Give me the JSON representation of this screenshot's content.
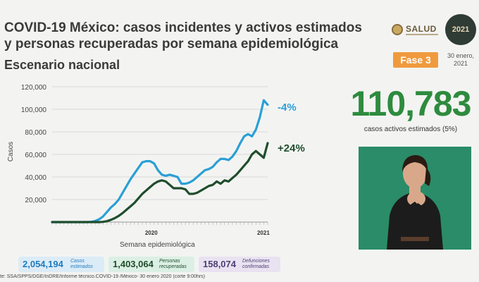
{
  "header": {
    "title": "COVID-19 México: casos incidentes y activos estimados y personas recuperadas por semana epidemiológica",
    "subtitle": "Escenario nacional",
    "logo_text": "SALUD",
    "year_badge": "2021",
    "phase": "Fase 3",
    "date": "30 enero, 2021"
  },
  "highlight": {
    "value": "110,783",
    "label": "casos activos estimados (5%)"
  },
  "chart_data": {
    "type": "line",
    "ylabel": "Casos",
    "xlabel": "Semana epidemiológica",
    "ylim": [
      0,
      120000
    ],
    "yticks": [
      "20,000",
      "40,000",
      "60,000",
      "80,000",
      "100,000",
      "120,000"
    ],
    "x_group_labels": [
      "2020",
      "2021"
    ],
    "x": [
      1,
      2,
      3,
      4,
      5,
      6,
      7,
      8,
      9,
      10,
      11,
      12,
      13,
      14,
      15,
      16,
      17,
      18,
      19,
      20,
      21,
      22,
      23,
      24,
      25,
      26,
      27,
      28,
      29,
      30,
      31,
      32,
      33,
      34,
      35,
      36,
      37,
      38,
      39,
      40,
      41,
      42,
      43,
      44,
      45,
      46,
      47,
      48,
      49,
      50,
      51,
      52,
      53,
      54,
      55,
      56
    ],
    "series": [
      {
        "name": "estimados",
        "color": "#2a9fd6",
        "change": "-4%",
        "values": [
          0,
          0,
          0,
          0,
          0,
          0,
          0,
          0,
          0,
          0,
          200,
          1000,
          2500,
          5000,
          9000,
          13000,
          16000,
          20000,
          26000,
          32000,
          38000,
          43000,
          48000,
          53000,
          54000,
          54000,
          52000,
          46000,
          42000,
          41000,
          42000,
          41000,
          40000,
          34000,
          34000,
          35000,
          37000,
          40000,
          43000,
          46000,
          47000,
          49000,
          53000,
          56000,
          56000,
          55000,
          58000,
          63000,
          70000,
          76000,
          78000,
          76000,
          82000,
          93000,
          108000,
          104000
        ]
      },
      {
        "name": "recuperadas",
        "color": "#1f4d2c",
        "change": "+24%",
        "values": [
          0,
          0,
          0,
          0,
          0,
          0,
          0,
          0,
          0,
          0,
          0,
          0,
          0,
          200,
          800,
          2000,
          3500,
          5500,
          8000,
          11000,
          14000,
          17000,
          21000,
          25000,
          28000,
          31000,
          34000,
          36000,
          37000,
          36000,
          33000,
          30000,
          30000,
          30000,
          29000,
          25000,
          25000,
          26000,
          28000,
          30000,
          32000,
          33000,
          36000,
          34000,
          37000,
          36000,
          39000,
          42000,
          46000,
          50000,
          54000,
          60000,
          63000,
          60000,
          57000,
          70000
        ]
      }
    ]
  },
  "stats": [
    {
      "value": "2,054,194",
      "label": "Casos estimados"
    },
    {
      "value": "1,403,064",
      "label": "Personas recuperadas"
    },
    {
      "value": "158,074",
      "label": "Defunciones confirmadas"
    }
  ],
  "source": "te: SSA/SPPS/DGE/InDRE/Informe técnico.COVID-19 /México- 30 enero 2020 (corte 9:00hrs)"
}
